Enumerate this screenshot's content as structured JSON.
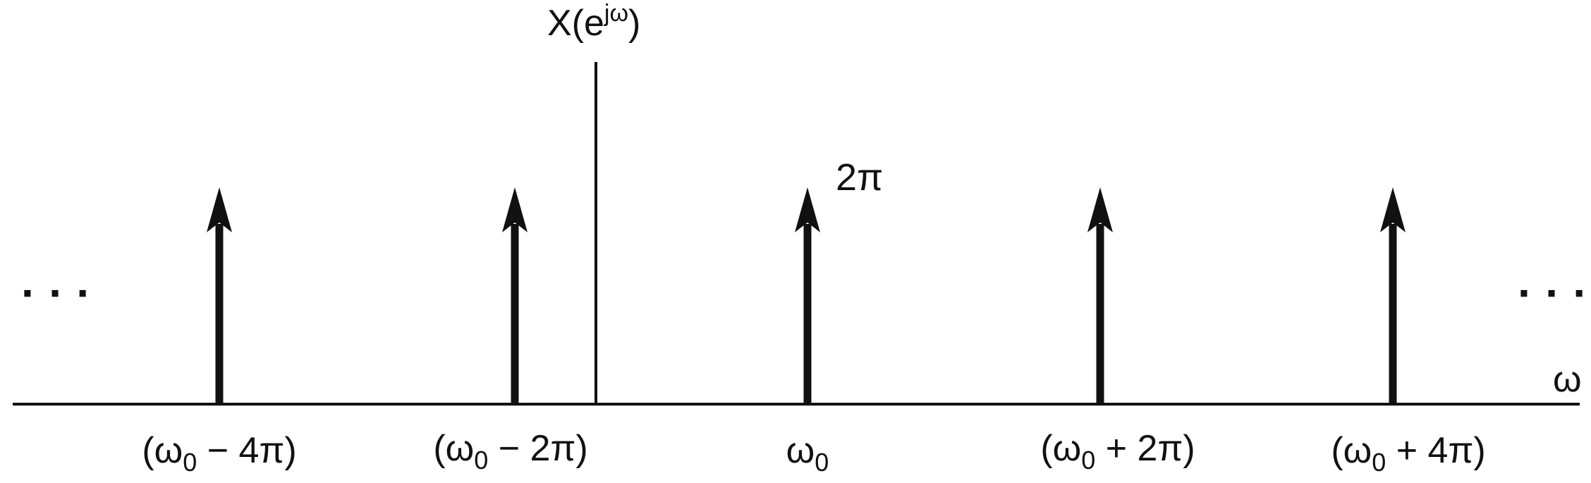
{
  "figure": {
    "y_axis_label": {
      "base": "X(e",
      "superscript": "jω",
      "close": ")"
    },
    "x_axis_label": "ω",
    "impulse_amplitude_label": "2π",
    "continuation_marks": {
      "left": "· · ·",
      "right": "· · ·"
    },
    "impulses": [
      {
        "label_main": "(ω",
        "label_sub": "0",
        "label_tail": " − 4π)",
        "offset_in_pi": -4,
        "amplitude": 2
      },
      {
        "label_main": "(ω",
        "label_sub": "0",
        "label_tail": " − 2π)",
        "offset_in_pi": -2,
        "amplitude": 2
      },
      {
        "label_main": "ω",
        "label_sub": "0",
        "label_tail": "",
        "offset_in_pi": 0,
        "amplitude": 2
      },
      {
        "label_main": "(ω",
        "label_sub": "0",
        "label_tail": " + 2π)",
        "offset_in_pi": 2,
        "amplitude": 2
      },
      {
        "label_main": "(ω",
        "label_sub": "0",
        "label_tail": " + 4π)",
        "offset_in_pi": 4,
        "amplitude": 2
      }
    ],
    "colors": {
      "ink": "#111111"
    }
  }
}
